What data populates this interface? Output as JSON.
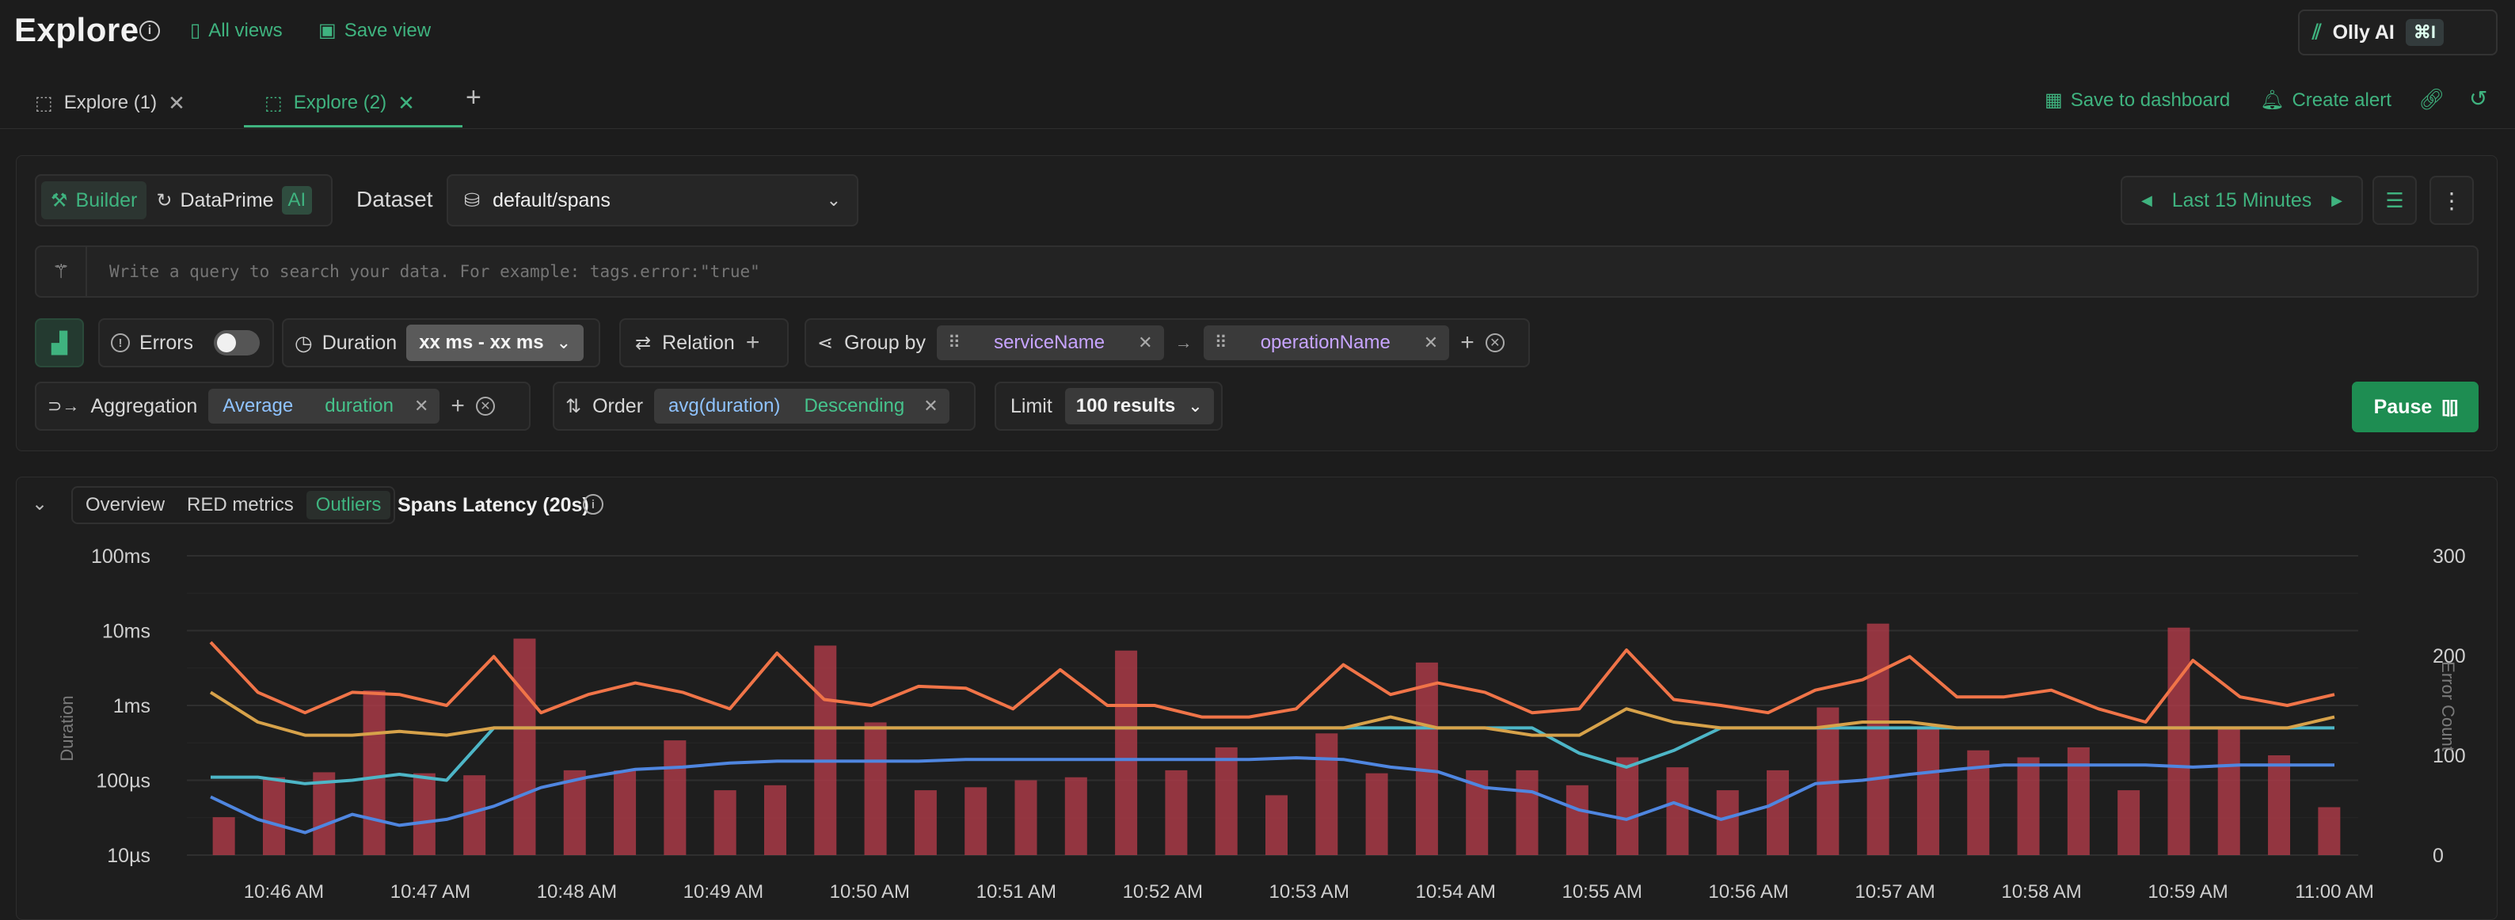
{
  "header": {
    "title": "Explore",
    "all_views": "All views",
    "save_view": "Save view",
    "olly_label": "Olly AI",
    "olly_shortcut": "⌘I"
  },
  "tabs": [
    {
      "label": "Explore (1)",
      "active": false
    },
    {
      "label": "Explore (2)",
      "active": true
    }
  ],
  "tab_actions": {
    "save_to_dashboard": "Save to dashboard",
    "create_alert": "Create alert"
  },
  "query": {
    "mode_builder": "Builder",
    "mode_dataprime": "DataPrime",
    "mode_ai_badge": "AI",
    "dataset_label": "Dataset",
    "dataset_value": "default/spans",
    "time_range": "Last 15 Minutes",
    "search_placeholder": "Write a query to search your data. For example: tags.error:\"true\"",
    "errors_label": "Errors",
    "errors_enabled": false,
    "duration_label": "Duration",
    "duration_value": "xx ms - xx ms",
    "relation_label": "Relation",
    "group_by_label": "Group by",
    "group_by": [
      "serviceName",
      "operationName"
    ],
    "aggregation_label": "Aggregation",
    "aggregation_func": "Average",
    "aggregation_field": "duration",
    "order_label": "Order",
    "order_field": "avg(duration)",
    "order_direction": "Descending",
    "limit_label": "Limit",
    "limit_value": "100 results",
    "pause_label": "Pause"
  },
  "chart_section": {
    "tabs": [
      "Overview",
      "RED metrics",
      "Outliers"
    ],
    "active_tab": "Outliers",
    "title": "Spans Latency (20s)"
  },
  "colors": {
    "accent": "#3fb37f",
    "bars": "#a83a46",
    "series_orange": "#f07448",
    "series_yellow": "#d7a24a",
    "series_cyan": "#4db6c7",
    "series_blue": "#4f86e0"
  },
  "chart_data": {
    "type": "line",
    "ylabel": "Duration",
    "y2label": "Error Count",
    "y_ticks": [
      "100ms",
      "10ms",
      "1ms",
      "100µs",
      "10µs"
    ],
    "y_scale": "log",
    "ylim": [
      0.01,
      100
    ],
    "y2_ticks": [
      "300",
      "200",
      "100",
      "0"
    ],
    "y2lim": [
      0,
      300
    ],
    "x_ticks": [
      "10:46 AM",
      "10:47 AM",
      "10:48 AM",
      "10:49 AM",
      "10:50 AM",
      "10:51 AM",
      "10:52 AM",
      "10:53 AM",
      "10:54 AM",
      "10:55 AM",
      "10:56 AM",
      "10:57 AM",
      "10:58 AM",
      "10:59 AM",
      "11:00 AM"
    ],
    "x_tick_positions": [
      1,
      3,
      5,
      7,
      9,
      11,
      13,
      15,
      17,
      19,
      21,
      23,
      25,
      27,
      29
    ],
    "x_count": 30,
    "grid": true,
    "bars_error_count": [
      38,
      78,
      83,
      165,
      82,
      80,
      217,
      85,
      85,
      115,
      65,
      70,
      210,
      133,
      65,
      68,
      75,
      78,
      205,
      85,
      108,
      60,
      122,
      82,
      193,
      85,
      85,
      70,
      98,
      88,
      65,
      85,
      148,
      232,
      128,
      105,
      98,
      108,
      65,
      228,
      128,
      100,
      48
    ],
    "series": [
      {
        "values": [
          7,
          1.5,
          0.8,
          1.5,
          1.4,
          1.0,
          4.5,
          0.8,
          1.4,
          2.0,
          1.5,
          0.9,
          5.0,
          1.2,
          1.0,
          1.8,
          1.7,
          0.9,
          3.0,
          1.0,
          1.0,
          0.7,
          0.7,
          0.9,
          3.5,
          1.4,
          2.0,
          1.5,
          0.8,
          0.9,
          5.5,
          1.2,
          1.0,
          0.8,
          1.6,
          2.2,
          4.5,
          1.3,
          1.3,
          1.6,
          0.9,
          0.6,
          4.0,
          1.3,
          1.0,
          1.4
        ]
      },
      {
        "values": [
          1.5,
          0.6,
          0.4,
          0.4,
          0.45,
          0.4,
          0.5,
          0.5,
          0.5,
          0.5,
          0.5,
          0.5,
          0.5,
          0.5,
          0.5,
          0.5,
          0.5,
          0.5,
          0.5,
          0.5,
          0.5,
          0.5,
          0.5,
          0.5,
          0.5,
          0.7,
          0.5,
          0.5,
          0.4,
          0.4,
          0.9,
          0.6,
          0.5,
          0.5,
          0.5,
          0.6,
          0.6,
          0.5,
          0.5,
          0.5,
          0.5,
          0.5,
          0.5,
          0.5,
          0.5,
          0.7
        ]
      },
      {
        "values": [
          0.11,
          0.11,
          0.09,
          0.1,
          0.12,
          0.1,
          0.5,
          0.5,
          0.5,
          0.5,
          0.5,
          0.5,
          0.5,
          0.5,
          0.5,
          0.5,
          0.5,
          0.5,
          0.5,
          0.5,
          0.5,
          0.5,
          0.5,
          0.5,
          0.5,
          0.5,
          0.5,
          0.5,
          0.5,
          0.23,
          0.15,
          0.25,
          0.5,
          0.5,
          0.5,
          0.5,
          0.5,
          0.5,
          0.5,
          0.5,
          0.5,
          0.5,
          0.5,
          0.5,
          0.5,
          0.5
        ]
      },
      {
        "values": [
          0.06,
          0.03,
          0.02,
          0.035,
          0.025,
          0.03,
          0.045,
          0.08,
          0.11,
          0.14,
          0.15,
          0.17,
          0.18,
          0.18,
          0.18,
          0.18,
          0.19,
          0.19,
          0.19,
          0.19,
          0.19,
          0.19,
          0.19,
          0.2,
          0.19,
          0.15,
          0.13,
          0.08,
          0.07,
          0.04,
          0.03,
          0.05,
          0.03,
          0.045,
          0.09,
          0.1,
          0.12,
          0.14,
          0.16,
          0.16,
          0.16,
          0.16,
          0.15,
          0.16,
          0.16,
          0.16
        ]
      }
    ]
  }
}
